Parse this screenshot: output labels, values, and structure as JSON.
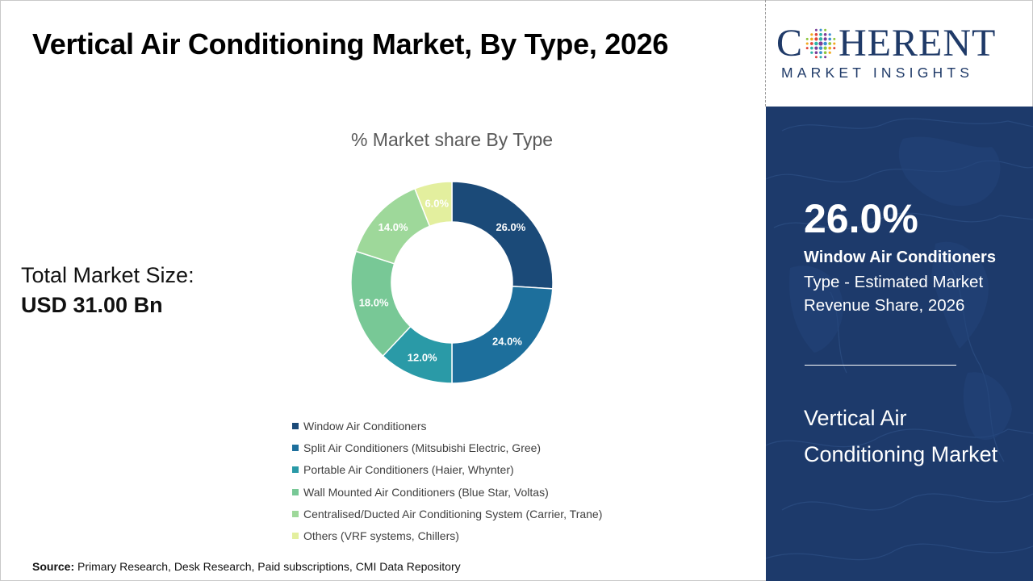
{
  "title": "Vertical Air Conditioning Market, By Type, 2026",
  "market_size": {
    "label": "Total Market Size:",
    "value": "USD 31.00 Bn"
  },
  "chart_data": {
    "type": "pie",
    "donut": true,
    "title": "% Market share By Type",
    "categories": [
      "Window Air Conditioners",
      "Split Air Conditioners (Mitsubishi Electric, Gree)",
      "Portable Air Conditioners (Haier, Whynter)",
      "Wall Mounted Air Conditioners (Blue Star, Voltas)",
      "Centralised/Ducted Air Conditioning System (Carrier, Trane)",
      "Others (VRF systems, Chillers)"
    ],
    "values": [
      26.0,
      24.0,
      12.0,
      18.0,
      14.0,
      6.0
    ],
    "data_labels": [
      "26.0%",
      "24.0%",
      "12.0%",
      "18.0%",
      "14.0%",
      "6.0%"
    ],
    "colors": [
      "#1b4a78",
      "#1d6f9c",
      "#2a9aa7",
      "#78c896",
      "#9ed89a",
      "#e3ef9e"
    ],
    "legend_position": "bottom"
  },
  "source": {
    "label": "Source:",
    "text": " Primary Research, Desk Research, Paid subscriptions, CMI Data Repository"
  },
  "logo": {
    "word_prefix": "C",
    "word_suffix": "HERENT",
    "tagline": "MARKET INSIGHTS",
    "color": "#1f3a68"
  },
  "panel": {
    "highlight_value": "26.0%",
    "highlight_segment": "Window Air Conditioners",
    "highlight_desc": "Type - Estimated Market Revenue Share, 2026",
    "market_name": "Vertical Air Conditioning Market",
    "background": "#1d3a6b"
  }
}
